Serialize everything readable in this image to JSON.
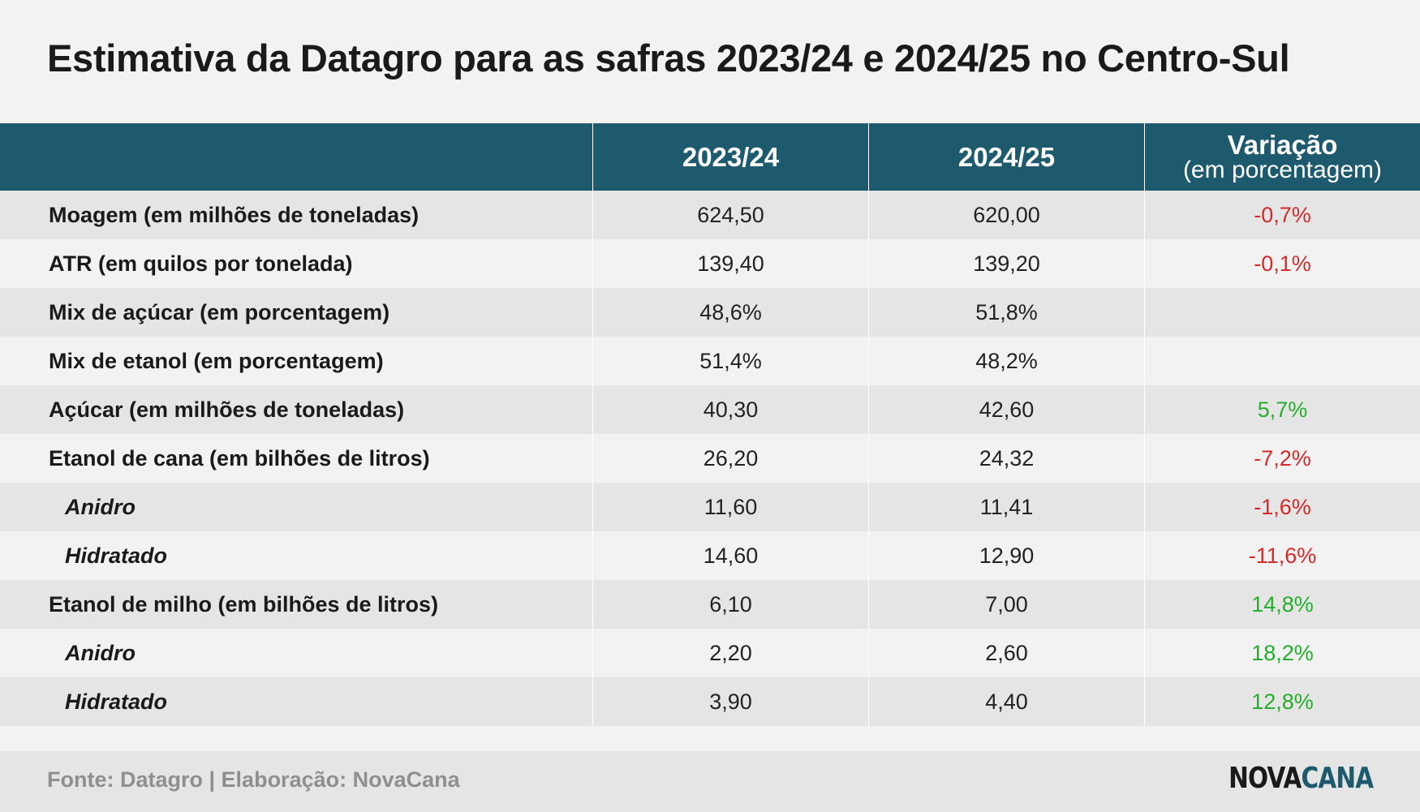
{
  "title": "Estimativa da Datagro para as safras 2023/24 e 2024/25 no Centro-Sul",
  "table": {
    "headers": {
      "label": "",
      "col1": "2023/24",
      "col2": "2024/25",
      "col3_main": "Variação",
      "col3_sub": "(em porcentagem)"
    },
    "rows": [
      {
        "label": "Moagem (em milhões de toneladas)",
        "v1": "624,50",
        "v2": "620,00",
        "var": "-0,7%",
        "sign": "neg",
        "sub": false
      },
      {
        "label": "ATR (em quilos por tonelada)",
        "v1": "139,40",
        "v2": "139,20",
        "var": "-0,1%",
        "sign": "neg",
        "sub": false
      },
      {
        "label": "Mix de açúcar (em porcentagem)",
        "v1": "48,6%",
        "v2": "51,8%",
        "var": "",
        "sign": "none",
        "sub": false
      },
      {
        "label": "Mix de etanol (em porcentagem)",
        "v1": "51,4%",
        "v2": "48,2%",
        "var": "",
        "sign": "none",
        "sub": false
      },
      {
        "label": "Açúcar (em milhões de toneladas)",
        "v1": "40,30",
        "v2": "42,60",
        "var": "5,7%",
        "sign": "pos",
        "sub": false
      },
      {
        "label": "Etanol de cana (em bilhões de litros)",
        "v1": "26,20",
        "v2": "24,32",
        "var": "-7,2%",
        "sign": "neg",
        "sub": false
      },
      {
        "label": "Anidro",
        "v1": "11,60",
        "v2": "11,41",
        "var": "-1,6%",
        "sign": "neg",
        "sub": true
      },
      {
        "label": "Hidratado",
        "v1": "14,60",
        "v2": "12,90",
        "var": "-11,6%",
        "sign": "neg",
        "sub": true
      },
      {
        "label": "Etanol de milho (em bilhões de litros)",
        "v1": "6,10",
        "v2": "7,00",
        "var": "14,8%",
        "sign": "pos",
        "sub": false
      },
      {
        "label": "Anidro",
        "v1": "2,20",
        "v2": "2,60",
        "var": "18,2%",
        "sign": "pos",
        "sub": true
      },
      {
        "label": "Hidratado",
        "v1": "3,90",
        "v2": "4,40",
        "var": "12,8%",
        "sign": "pos",
        "sub": true
      }
    ]
  },
  "footer": {
    "source": "Fonte: Datagro | Elaboração: NovaCana",
    "logo_part1": "NOVA",
    "logo_part2": "CANA"
  },
  "colors": {
    "header_bg": "#1e5a6d",
    "negative": "#d42a2a",
    "positive": "#22b02a",
    "row_alt": "#e5e5e5",
    "background": "#f2f2f2"
  }
}
